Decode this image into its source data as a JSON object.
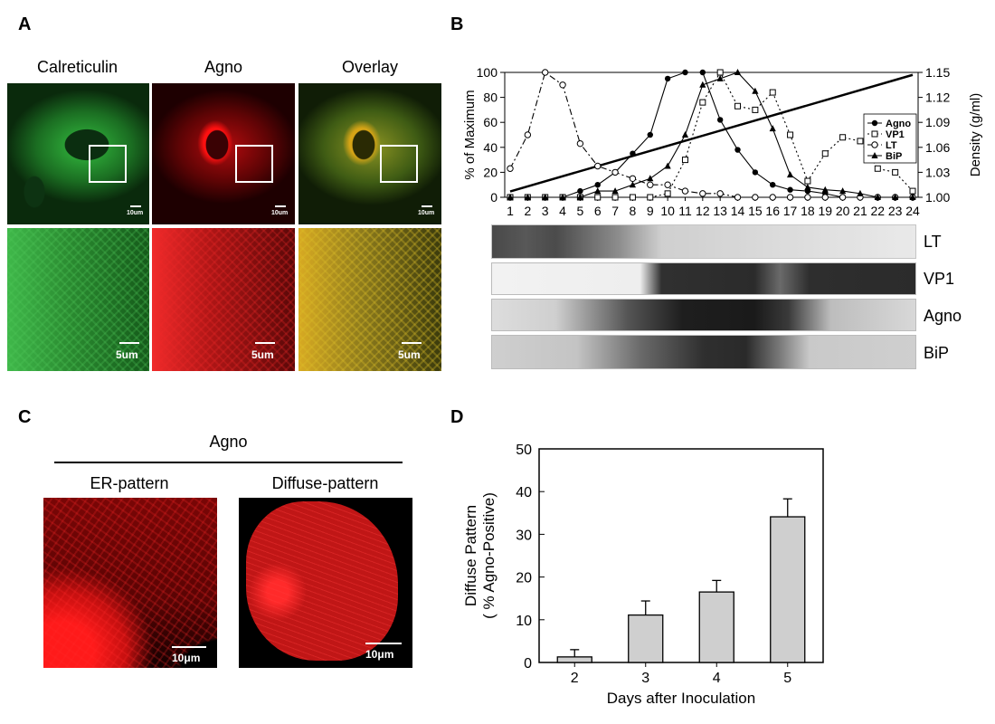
{
  "panelA": {
    "label": "A",
    "columns": [
      "Calreticulin",
      "Agno",
      "Overlay"
    ],
    "scale_top": "10um",
    "scale_bottom": "5um"
  },
  "panelB": {
    "label": "B",
    "blots": [
      "LT",
      "VP1",
      "Agno",
      "BiP"
    ]
  },
  "panelC": {
    "label": "C",
    "header": "Agno",
    "subpanels": [
      "ER-pattern",
      "Diffuse-pattern"
    ],
    "scale": "10μm"
  },
  "panelD": {
    "label": "D"
  },
  "chart_data": [
    {
      "type": "line",
      "xlabel": "",
      "ylabel": "% of Maximum",
      "y2label": "Density (g/ml)",
      "x": [
        1,
        2,
        3,
        4,
        5,
        6,
        7,
        8,
        9,
        10,
        11,
        12,
        13,
        14,
        15,
        16,
        17,
        18,
        19,
        20,
        21,
        22,
        23,
        24
      ],
      "xticks": [
        "1",
        "2",
        "3",
        "4",
        "5",
        "6",
        "7",
        "8",
        "9",
        "10",
        "11",
        "12",
        "13",
        "14",
        "15",
        "16",
        "17",
        "18",
        "19",
        "20",
        "21",
        "22",
        "23",
        "24"
      ],
      "ylim": [
        0,
        100
      ],
      "yticks": [
        "0",
        "20",
        "40",
        "60",
        "80",
        "100"
      ],
      "y2lim": [
        1.0,
        1.15
      ],
      "y2ticks": [
        "1.00",
        "1.03",
        "1.06",
        "1.09",
        "1.12",
        "1.15"
      ],
      "legend_position": "right",
      "series": [
        {
          "name": "Agno",
          "marker": "filled-circle",
          "style": "solid",
          "values": [
            0,
            0,
            0,
            0,
            5,
            10,
            20,
            35,
            50,
            95,
            100,
            100,
            62,
            38,
            20,
            10,
            6,
            5,
            3,
            0,
            0,
            0,
            0,
            0
          ]
        },
        {
          "name": "VP1",
          "marker": "open-square",
          "style": "dotted",
          "values": [
            0,
            0,
            0,
            0,
            0,
            0,
            0,
            0,
            0,
            3,
            30,
            76,
            100,
            73,
            70,
            84,
            50,
            13,
            35,
            48,
            45,
            23,
            20,
            5
          ]
        },
        {
          "name": "LT",
          "marker": "open-circle",
          "style": "dash-dot",
          "values": [
            23,
            50,
            100,
            90,
            43,
            25,
            20,
            15,
            10,
            10,
            5,
            3,
            3,
            0,
            0,
            0,
            0,
            0,
            0,
            0,
            0,
            0,
            0,
            0
          ]
        },
        {
          "name": "BiP",
          "marker": "filled-triangle",
          "style": "solid",
          "values": [
            0,
            0,
            0,
            0,
            0,
            5,
            5,
            10,
            15,
            25,
            50,
            90,
            95,
            100,
            85,
            55,
            18,
            8,
            6,
            5,
            3,
            0,
            0,
            0
          ]
        }
      ],
      "density_line": {
        "from": [
          1,
          1.007
        ],
        "to": [
          24,
          1.147
        ]
      }
    },
    {
      "type": "bar",
      "categories": [
        "2",
        "3",
        "4",
        "5"
      ],
      "values": [
        1.3,
        11.1,
        16.5,
        34.1
      ],
      "errors": [
        1.7,
        3.3,
        2.7,
        4.2
      ],
      "xlabel": "Days after Inoculation",
      "ylabel": "Diffuse Pattern\n( % Agno-Positive)",
      "ylim": [
        0,
        50
      ],
      "yticks": [
        "0",
        "10",
        "20",
        "30",
        "40",
        "50"
      ],
      "colors": {
        "bar": "#cfcfcf",
        "edge": "#000000"
      }
    }
  ]
}
